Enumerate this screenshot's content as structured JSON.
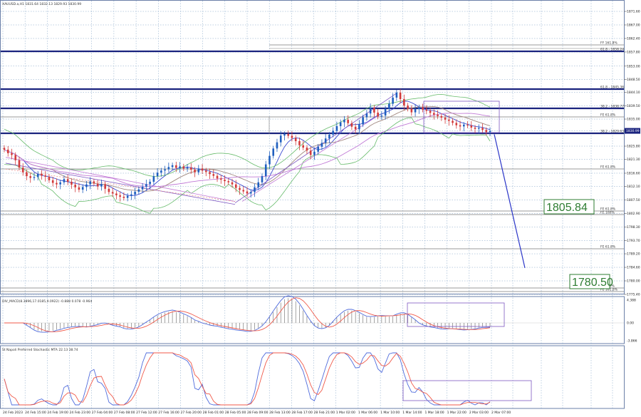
{
  "header": {
    "symbol_line": "XAUUSD.a,H1  1831.64 1832.13 1829.93 1830.99"
  },
  "colors": {
    "background": "#ffffff",
    "grid": "#7c9fc4",
    "candle_up": "#1f5fbf",
    "candle_down": "#d23b3b",
    "level_line": "#1a237e",
    "projection": "#2a35c8",
    "target_text": "#2e7d32",
    "macd_main": "#4f6bdc",
    "macd_signal": "#f05a4a",
    "bands_lower": "#66bb6a",
    "ma_brown": "#a1887f",
    "ma_pink": "#c17ad6"
  },
  "price_axis": {
    "ticks": [
      "1871.60",
      "1867.00",
      "1862.40",
      "1857.80",
      "1853.00",
      "1848.50",
      "1844.10",
      "1839.50",
      "1835.00",
      "1830.99",
      "1825.80",
      "1821.30",
      "1816.60",
      "1812.10",
      "1807.50",
      "1802.90",
      "1798.30",
      "1793.70",
      "1789.20",
      "1784.60",
      "1780.00",
      "1775.40"
    ],
    "current_price": "1830.99"
  },
  "levels": [
    {
      "label": "FF 161.8% ",
      "tag": "",
      "heavy": false
    },
    {
      "label": "61.8 - 1858.24",
      "heavy": true
    },
    {
      "label": "61.8 - 1845.36",
      "heavy": true
    },
    {
      "label": "38.2 - 1838.77",
      "heavy": true
    },
    {
      "label": "FE 61.8%",
      "heavy": false
    },
    {
      "label": "38.2 - 1829.63",
      "heavy": true
    },
    {
      "label": "FE 61.8%",
      "heavy": false
    },
    {
      "label": "FE 61.8%",
      "heavy": false
    },
    {
      "label": "FE 100%",
      "heavy": false
    },
    {
      "label": "FE 61.8%",
      "heavy": false
    },
    {
      "label": "FE 100%",
      "heavy": false
    },
    {
      "label": "FE 161.8%",
      "heavy": false
    }
  ],
  "targets": {
    "first": "1805.84",
    "second": "1780.50"
  },
  "time_axis": [
    "24 Feb 2023",
    "24 Feb 15:00",
    "24 Feb 19:00",
    "24 Feb 23:00",
    "27 Feb 04:00",
    "27 Feb 08:00",
    "27 Feb 12:00",
    "27 Feb 16:00",
    "27 Feb 20:00",
    "28 Feb 01:00",
    "28 Feb 05:00",
    "28 Feb 09:00",
    "28 Feb 13:00",
    "28 Feb 17:00",
    "28 Feb 21:00",
    "1 Mar 02:00",
    "1 Mar 06:00",
    "1 Mar 10:00",
    "1 Mar 14:00",
    "1 Mar 18:00",
    "1 Mar 22:00",
    "2 Mar 03:00",
    "2 Mar 07:00"
  ],
  "macd": {
    "label": "DIV_MACD(8.3896,17.0185,9.0922) -0.888 0.078 -0.964",
    "ticks": [
      "4.388",
      "0.00",
      "-3.866"
    ]
  },
  "stoch": {
    "label": "St Napoli Preferred Stochastic MTA 22.13 38.74"
  },
  "chart_data": {
    "type": "candlestick",
    "title": "XAUUSD.a,H1",
    "symbol": "XAUUSD.a",
    "timeframe": "H1",
    "ohlc_last": {
      "open": 1831.64,
      "high": 1832.13,
      "low": 1829.93,
      "close": 1830.99
    },
    "ylim": [
      1775.4,
      1873.0
    ],
    "close_path": [
      1824.6,
      1823.4,
      1822.8,
      1821.0,
      1818.5,
      1816.9,
      1815.6,
      1815.0,
      1815.3,
      1816.4,
      1815.8,
      1815.4,
      1814.2,
      1813.3,
      1812.8,
      1813.5,
      1814.6,
      1813.7,
      1812.7,
      1811.8,
      1811.0,
      1811.9,
      1812.8,
      1813.8,
      1813.1,
      1812.1,
      1812.9,
      1811.3,
      1810.2,
      1809.7,
      1809.1,
      1808.6,
      1808.2,
      1808.9,
      1809.4,
      1810.3,
      1811.1,
      1812.0,
      1812.9,
      1813.7,
      1815.6,
      1816.8,
      1817.5,
      1817.9,
      1818.7,
      1819.3,
      1818.4,
      1818.9,
      1818.2,
      1818.5,
      1817.8,
      1816.9,
      1818.2,
      1817.5,
      1817.0,
      1816.3,
      1815.7,
      1814.8,
      1814.4,
      1813.9,
      1813.5,
      1812.8,
      1811.6,
      1810.9,
      1810.4,
      1809.7,
      1810.2,
      1811.8,
      1813.5,
      1815.6,
      1819.6,
      1822.5,
      1825.0,
      1827.1,
      1829.4,
      1829.9,
      1829.3,
      1828.6,
      1827.5,
      1826.1,
      1825.3,
      1824.3,
      1822.8,
      1823.9,
      1825.6,
      1826.9,
      1828.4,
      1829.7,
      1831.0,
      1832.6,
      1833.9,
      1834.8,
      1833.6,
      1832.4,
      1831.5,
      1833.2,
      1835.6,
      1836.9,
      1838.8,
      1837.2,
      1835.9,
      1836.2,
      1838.5,
      1840.2,
      1842.3,
      1844.0,
      1841.8,
      1839.6,
      1838.5,
      1837.3,
      1838.4,
      1839.0,
      1838.2,
      1837.8,
      1837.1,
      1836.5,
      1836.0,
      1835.5,
      1834.8,
      1834.4,
      1833.7,
      1832.9,
      1832.5,
      1833.1,
      1832.8,
      1832.1,
      1831.7,
      1832.0,
      1831.3,
      1830.6,
      1830.99
    ],
    "horizontal_levels": [
      {
        "label": "61.8 - 1858.24",
        "value": 1858.24
      },
      {
        "label": "61.8 - 1845.36",
        "value": 1845.36
      },
      {
        "label": "38.2 - 1838.77",
        "value": 1838.77
      },
      {
        "label": "38.2 - 1829.63",
        "value": 1829.63
      }
    ],
    "projection": {
      "from": 1829.6,
      "to": 1780.5
    },
    "annotations": [
      "1805.84",
      "1780.50"
    ],
    "indicators": [
      "DIV_MACD(8.3896,17.0185,9.0922) -0.888 0.078 -0.964",
      "St Napoli Preferred Stochastic MTA 22.13 38.74"
    ],
    "grid": true
  }
}
